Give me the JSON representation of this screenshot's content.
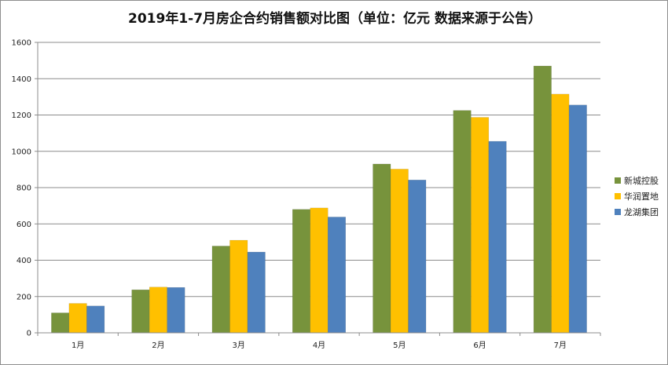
{
  "chart_data": {
    "type": "bar",
    "title": "2019年1-7月房企合约销售额对比图（单位：亿元 数据来源于公告）",
    "xlabel": "",
    "ylabel": "",
    "categories": [
      "1月",
      "2月",
      "3月",
      "4月",
      "5月",
      "6月",
      "7月"
    ],
    "series": [
      {
        "name": "新城控股",
        "color": "#77933c",
        "values": [
          110,
          237,
          478,
          680,
          930,
          1225,
          1470
        ]
      },
      {
        "name": "华润置地",
        "color": "#ffc000",
        "values": [
          162,
          252,
          510,
          688,
          902,
          1187,
          1315
        ]
      },
      {
        "name": "龙湖集团",
        "color": "#4f81bd",
        "values": [
          148,
          250,
          445,
          638,
          842,
          1055,
          1255
        ]
      }
    ],
    "ylim": [
      0,
      1600
    ],
    "yticks": [
      0,
      200,
      400,
      600,
      800,
      1000,
      1200,
      1400,
      1600
    ],
    "grid": true,
    "legend_position": "right"
  }
}
